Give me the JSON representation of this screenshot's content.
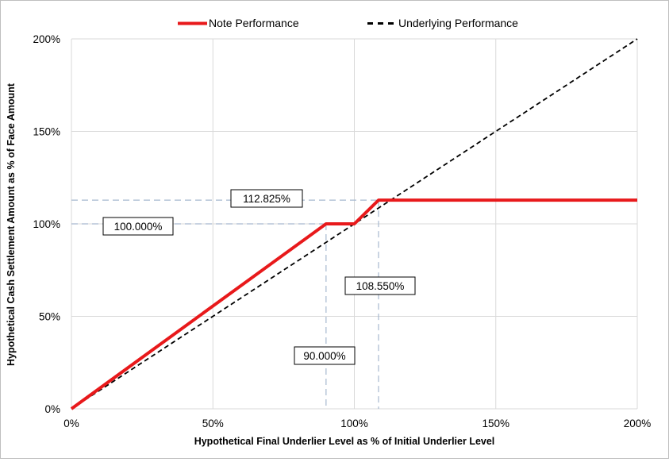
{
  "chart_data": {
    "type": "line",
    "title": "",
    "xlabel": "Hypothetical Final Underlier Level as % of Initial Underlier Level",
    "ylabel": "Hypothetical Cash Settlement Amount as % of Face Amount",
    "xlim": [
      0,
      200
    ],
    "ylim": [
      0,
      200
    ],
    "x_ticks": [
      0,
      50,
      100,
      150,
      200
    ],
    "y_ticks": [
      0,
      50,
      100,
      150,
      200
    ],
    "x_tick_labels": [
      "0%",
      "50%",
      "100%",
      "150%",
      "200%"
    ],
    "y_tick_labels": [
      "0%",
      "50%",
      "100%",
      "150%",
      "200%"
    ],
    "grid": true,
    "legend_position": "top-center",
    "series": [
      {
        "name": "Note Performance",
        "style": "solid",
        "color": "#e8191b",
        "x": [
          0,
          90,
          100,
          108.55,
          200
        ],
        "y": [
          0,
          100,
          100,
          112.825,
          112.825
        ]
      },
      {
        "name": "Underlying Performance",
        "style": "dashed",
        "color": "#000000",
        "x": [
          0,
          200
        ],
        "y": [
          0,
          200
        ]
      }
    ],
    "reference_lines": [
      {
        "axis": "y",
        "value": 112.825,
        "label": "112.825%"
      },
      {
        "axis": "y",
        "value": 100,
        "label": "100.000%"
      },
      {
        "axis": "x",
        "value": 108.55,
        "label": "108.550%"
      },
      {
        "axis": "x",
        "value": 90,
        "label": "90.000%"
      }
    ],
    "ref_color": "#a6b8cf",
    "grid_color": "#d9d9d9"
  }
}
